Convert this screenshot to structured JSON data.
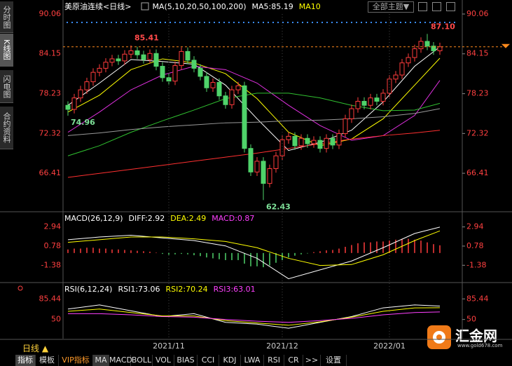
{
  "sidebar": [
    "分时图",
    "K线图",
    "闪电图",
    "合约资料"
  ],
  "toolbar": [
    "指标",
    "模板",
    "VIP指标",
    "MA",
    "MACD",
    "BOLL",
    "VOL",
    "BIAS",
    "CCI",
    "KDJ",
    "LWA",
    "RSI",
    "CR",
    ">>",
    "设置"
  ],
  "period_button": "日线 ▲",
  "theme_button": "全部主题▼",
  "logo": {
    "name": "汇金网",
    "url": "www.gold678.com"
  },
  "chart_data": [
    {
      "type": "candlestick",
      "title": "美原油连续<日线>",
      "legend": [
        {
          "text": "MA(5,10,20,50,100,200)",
          "color": "#ffffff"
        },
        {
          "text": "MA5:85.19",
          "color": "#ffffff"
        },
        {
          "text": "MA10",
          "color": "#ffff00"
        }
      ],
      "categories": [
        null,
        null,
        null,
        null,
        null,
        null,
        null,
        null,
        null,
        null,
        null,
        null,
        null,
        null,
        null,
        null,
        "2021/11",
        null,
        null,
        null,
        null,
        null,
        null,
        null,
        null,
        null,
        null,
        null,
        null,
        null,
        null,
        null,
        null,
        null,
        "2021/12",
        null,
        null,
        null,
        null,
        null,
        null,
        null,
        null,
        null,
        null,
        null,
        null,
        null,
        null,
        null,
        null,
        "2022/01",
        null,
        null,
        null,
        null,
        null,
        null,
        null,
        null
      ],
      "open": [
        76.5,
        75.9,
        77.6,
        78.8,
        80.0,
        81.4,
        82.0,
        82.9,
        83.4,
        83.1,
        84.1,
        84.6,
        84.0,
        83.3,
        84.2,
        82.3,
        80.6,
        80.1,
        82.4,
        84.5,
        83.2,
        82.0,
        80.8,
        79.1,
        79.9,
        77.9,
        76.6,
        78.8,
        79.4,
        70.1,
        66.6,
        68.2,
        64.9,
        67.1,
        69.0,
        71.4,
        71.9,
        70.5,
        71.6,
        70.8,
        71.3,
        70.1,
        71.6,
        70.6,
        72.3,
        74.5,
        76.0,
        77.1,
        76.5,
        77.6,
        77.1,
        78.3,
        80.4,
        81.0,
        82.8,
        83.6,
        84.9,
        86.0,
        85.3,
        84.6
      ],
      "high": [
        77.1,
        78.2,
        79.4,
        80.6,
        82.0,
        82.6,
        83.5,
        84.0,
        84.0,
        84.7,
        85.41,
        85.2,
        84.6,
        84.8,
        84.8,
        82.9,
        81.2,
        83.0,
        85.1,
        85.1,
        83.8,
        82.6,
        81.4,
        80.5,
        80.5,
        78.5,
        79.4,
        80.0,
        80.0,
        70.7,
        68.8,
        68.8,
        67.7,
        69.6,
        72.0,
        72.5,
        72.5,
        72.2,
        72.2,
        71.9,
        71.9,
        72.2,
        72.2,
        72.9,
        75.1,
        76.6,
        77.7,
        77.7,
        78.2,
        78.2,
        78.9,
        81.0,
        81.6,
        83.4,
        84.2,
        85.5,
        86.6,
        87.1,
        85.9,
        85.8
      ],
      "low": [
        74.96,
        75.3,
        77.0,
        78.2,
        79.4,
        80.8,
        81.4,
        82.3,
        82.5,
        82.5,
        83.5,
        83.4,
        82.7,
        82.7,
        81.7,
        80.0,
        79.5,
        79.5,
        81.8,
        82.6,
        81.4,
        80.2,
        78.5,
        78.5,
        77.3,
        76.0,
        76.0,
        78.2,
        69.5,
        66.0,
        66.0,
        62.43,
        64.3,
        66.5,
        68.4,
        70.8,
        69.9,
        69.9,
        70.2,
        70.2,
        69.5,
        69.5,
        70.0,
        70.0,
        71.7,
        73.9,
        75.4,
        75.9,
        75.9,
        76.5,
        76.5,
        77.7,
        79.8,
        80.4,
        82.2,
        83.0,
        84.3,
        84.7,
        84.0,
        84.0
      ],
      "close": [
        75.9,
        77.6,
        78.8,
        80.0,
        81.4,
        82.0,
        82.9,
        83.4,
        83.1,
        84.1,
        84.6,
        84.0,
        83.3,
        84.2,
        82.3,
        80.6,
        80.1,
        82.4,
        84.5,
        83.2,
        82.0,
        80.8,
        79.1,
        79.9,
        77.9,
        76.6,
        78.8,
        79.4,
        70.1,
        66.6,
        68.2,
        64.9,
        67.1,
        69.0,
        71.4,
        71.9,
        70.5,
        71.6,
        70.8,
        71.3,
        70.1,
        71.6,
        70.6,
        72.3,
        74.5,
        76.0,
        77.1,
        76.5,
        77.6,
        77.1,
        78.3,
        80.4,
        81.0,
        82.8,
        83.6,
        84.9,
        86.0,
        85.3,
        84.6,
        85.19
      ],
      "up_color": "#ff3c3c",
      "down_color": "#4fd36a",
      "annotations": [
        85.41,
        74.96,
        62.43,
        {
          "value": 87.1,
          "label": "87.10"
        }
      ],
      "series": [
        {
          "color": "#ffffff",
          "x": [
            0,
            5,
            10,
            15,
            20,
            25,
            30,
            35,
            40,
            45,
            50,
            55,
            59
          ],
          "values": [
            76.5,
            79.8,
            83.3,
            83.0,
            82.6,
            79.5,
            74.5,
            69.8,
            71.0,
            72.8,
            77.0,
            82.3,
            85.19
          ]
        },
        {
          "color": "#ffff00",
          "x": [
            0,
            5,
            10,
            15,
            20,
            25,
            30,
            35,
            40,
            45,
            50,
            55,
            59
          ],
          "values": [
            75.5,
            78.0,
            81.8,
            83.4,
            82.8,
            81.2,
            77.5,
            72.5,
            70.5,
            71.5,
            74.5,
            79.5,
            83.5
          ]
        },
        {
          "color": "#e030e0",
          "x": [
            0,
            5,
            10,
            15,
            20,
            25,
            30,
            35,
            40,
            45,
            50,
            55,
            59
          ],
          "values": [
            72.5,
            75.5,
            78.8,
            81.0,
            82.3,
            81.8,
            79.8,
            76.5,
            73.5,
            71.3,
            72.0,
            75.0,
            80.2
          ]
        },
        {
          "color": "#30c030",
          "x": [
            0,
            5,
            10,
            15,
            20,
            25,
            30,
            35,
            40,
            45,
            50,
            55,
            59
          ],
          "values": [
            69.0,
            70.5,
            72.5,
            74.2,
            75.8,
            77.5,
            78.3,
            78.3,
            77.6,
            76.5,
            75.7,
            75.8,
            76.8
          ]
        },
        {
          "color": "#9a9a9a",
          "x": [
            0,
            5,
            10,
            15,
            20,
            25,
            30,
            35,
            40,
            45,
            50,
            55,
            59
          ],
          "values": [
            72.0,
            72.4,
            72.9,
            73.3,
            73.6,
            73.9,
            74.0,
            74.2,
            74.3,
            74.5,
            74.8,
            75.3,
            76.0
          ]
        },
        {
          "color": "#ff3030",
          "x": [
            0,
            5,
            10,
            15,
            20,
            25,
            30,
            35,
            40,
            45,
            50,
            55,
            59
          ],
          "values": [
            65.8,
            66.4,
            67.0,
            67.6,
            68.2,
            68.8,
            69.4,
            70.1,
            70.8,
            71.5,
            72.0,
            72.4,
            72.8
          ]
        }
      ],
      "ylim": [
        60.8,
        91.1
      ],
      "yticks": [
        90.06,
        84.15,
        78.23,
        72.32,
        66.41
      ]
    },
    {
      "type": "macd",
      "legend": [
        {
          "text": "MACD(26,12,9)",
          "color": "#ffffff"
        },
        {
          "text": "DIFF:2.92",
          "color": "#ffffff"
        },
        {
          "text": "DEA:2.49",
          "color": "#ffff00"
        },
        {
          "text": "MACD:0.87",
          "color": "#ff40ff"
        }
      ],
      "values": [
        0.4,
        0.5,
        0.5,
        0.6,
        0.6,
        0.5,
        0.5,
        0.4,
        0.4,
        0.35,
        0.3,
        0.25,
        0.2,
        0.15,
        0.05,
        -0.1,
        -0.2,
        -0.15,
        -0.1,
        -0.15,
        -0.25,
        -0.35,
        -0.5,
        -0.6,
        -0.7,
        -0.8,
        -0.8,
        -0.8,
        -1.2,
        -1.5,
        -1.5,
        -1.6,
        -1.4,
        -1.1,
        -0.8,
        -0.5,
        -0.3,
        -0.15,
        -0.05,
        0.1,
        0.2,
        0.3,
        0.35,
        0.5,
        0.7,
        0.9,
        1.1,
        1.2,
        1.2,
        1.3,
        1.3,
        1.4,
        1.5,
        1.6,
        1.6,
        1.5,
        1.4,
        1.2,
        1.0,
        0.87
      ],
      "up_color": "#ff3c3c",
      "down_color": "#4fd36a",
      "series": [
        {
          "color": "#ffffff",
          "x": [
            0,
            5,
            10,
            15,
            20,
            25,
            30,
            35,
            40,
            45,
            50,
            55,
            59
          ],
          "values": [
            1.5,
            1.8,
            2.0,
            1.7,
            1.4,
            0.8,
            -0.6,
            -2.9,
            -1.9,
            -0.9,
            0.6,
            2.2,
            2.92
          ]
        },
        {
          "color": "#ffff00",
          "x": [
            0,
            5,
            10,
            15,
            20,
            25,
            30,
            35,
            40,
            45,
            50,
            55,
            59
          ],
          "values": [
            1.2,
            1.5,
            1.8,
            1.8,
            1.6,
            1.3,
            0.6,
            -0.6,
            -1.4,
            -1.3,
            -0.2,
            1.4,
            2.49
          ]
        }
      ],
      "ylim": [
        -3.25,
        4.49
      ],
      "yticks": [
        2.94,
        0.78,
        -1.38
      ]
    },
    {
      "type": "line",
      "legend": [
        {
          "text": "RSI(6,12,24)",
          "color": "#ffffff"
        },
        {
          "text": "RSI1:73.06",
          "color": "#ffffff"
        },
        {
          "text": "RSI2:70.24",
          "color": "#ffff00"
        },
        {
          "text": "RSI3:63.01",
          "color": "#ff40ff"
        }
      ],
      "series": [
        {
          "color": "#ffffff",
          "x": [
            0,
            5,
            10,
            15,
            20,
            25,
            30,
            35,
            40,
            45,
            50,
            55,
            59
          ],
          "values": [
            68,
            75,
            65,
            55,
            60,
            45,
            42,
            35,
            45,
            55,
            70,
            75,
            73.06
          ]
        },
        {
          "color": "#ffff00",
          "x": [
            0,
            5,
            10,
            15,
            20,
            25,
            30,
            35,
            40,
            45,
            50,
            55,
            59
          ],
          "values": [
            64,
            68,
            62,
            56,
            56,
            48,
            44,
            40,
            46,
            54,
            64,
            70,
            70.24
          ]
        },
        {
          "color": "#ff40ff",
          "x": [
            0,
            5,
            10,
            15,
            20,
            25,
            30,
            35,
            40,
            45,
            50,
            55,
            59
          ],
          "values": [
            60,
            60,
            58,
            55,
            54,
            50,
            47,
            45,
            48,
            52,
            58,
            62,
            63.01
          ]
        }
      ],
      "ylim": [
        17,
        111.1
      ],
      "yticks": [
        85.44,
        50
      ]
    }
  ]
}
